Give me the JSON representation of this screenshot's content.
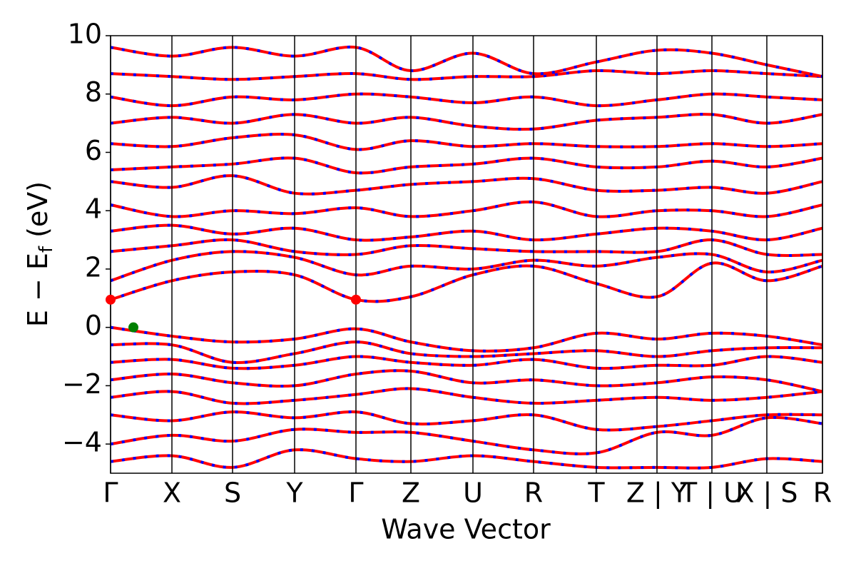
{
  "chart_data": {
    "type": "line",
    "xlabel": "Wave Vector",
    "ylabel": {
      "main": "E − E",
      "sub": "f",
      "unit": "(eV)"
    },
    "x": [
      0,
      0.86,
      1.71,
      2.58,
      3.44,
      4.21,
      5.08,
      5.93,
      6.81,
      7.66,
      8.43,
      9.2,
      9.98
    ],
    "xlim": [
      0,
      9.98
    ],
    "xticks": [
      {
        "value": 0,
        "label": "Γ"
      },
      {
        "value": 0.86,
        "label": "X"
      },
      {
        "value": 1.71,
        "label": "S"
      },
      {
        "value": 2.58,
        "label": "Y"
      },
      {
        "value": 3.44,
        "label": "Γ"
      },
      {
        "value": 4.21,
        "label": "Z"
      },
      {
        "value": 5.08,
        "label": "U"
      },
      {
        "value": 5.93,
        "label": "R"
      },
      {
        "value": 6.81,
        "label": "T"
      },
      {
        "value": 7.66,
        "label": "Z | Y"
      },
      {
        "value": 8.43,
        "label": "T | U"
      },
      {
        "value": 9.2,
        "label": "X | S"
      },
      {
        "value": 9.98,
        "label": "R"
      }
    ],
    "ylim": [
      -5,
      10
    ],
    "yticks": [
      {
        "value": -4,
        "label": "−4"
      },
      {
        "value": -2,
        "label": "−2"
      },
      0,
      2,
      4,
      6,
      8,
      10
    ],
    "line_color": "#ff0000",
    "dash_color": "#0000ff",
    "series": [
      {
        "values": [
          0,
          -0.3,
          -0.5,
          -0.4,
          -0.05,
          -0.5,
          -0.8,
          -0.7,
          -0.2,
          -0.4,
          -0.2,
          -0.3,
          -0.6
        ]
      },
      {
        "values": [
          -0.6,
          -0.6,
          -1.2,
          -0.9,
          -0.5,
          -0.9,
          -1.0,
          -0.9,
          -0.8,
          -1.0,
          -0.8,
          -0.7,
          -0.7
        ]
      },
      {
        "values": [
          -1.2,
          -1.1,
          -1.4,
          -1.3,
          -1.0,
          -1.2,
          -1.3,
          -1.1,
          -1.4,
          -1.3,
          -1.3,
          -1.0,
          -1.2
        ]
      },
      {
        "values": [
          -1.8,
          -1.6,
          -1.9,
          -2.0,
          -1.6,
          -1.5,
          -1.9,
          -1.8,
          -2.0,
          -1.9,
          -1.7,
          -1.8,
          -2.2
        ]
      },
      {
        "values": [
          -2.4,
          -2.2,
          -2.6,
          -2.5,
          -2.3,
          -2.1,
          -2.4,
          -2.6,
          -2.5,
          -2.4,
          -2.5,
          -2.4,
          -2.2
        ]
      },
      {
        "values": [
          -3.0,
          -3.2,
          -2.9,
          -3.1,
          -2.9,
          -3.3,
          -3.2,
          -3.0,
          -3.5,
          -3.4,
          -3.2,
          -3.0,
          -3.0
        ]
      },
      {
        "values": [
          -4.0,
          -3.7,
          -3.9,
          -3.5,
          -3.6,
          -3.6,
          -3.9,
          -4.2,
          -4.3,
          -3.6,
          -3.7,
          -3.1,
          -3.3
        ]
      },
      {
        "values": [
          -4.6,
          -4.4,
          -4.8,
          -4.2,
          -4.5,
          -4.6,
          -4.4,
          -4.6,
          -4.8,
          -4.8,
          -4.8,
          -4.5,
          -4.6
        ]
      },
      {
        "values": [
          0.95,
          1.6,
          1.9,
          1.8,
          0.95,
          1.05,
          1.8,
          2.1,
          1.5,
          1.05,
          2.2,
          1.6,
          2.1
        ]
      },
      {
        "values": [
          1.6,
          2.3,
          2.6,
          2.4,
          1.8,
          2.1,
          2.0,
          2.3,
          2.1,
          2.4,
          2.5,
          1.9,
          2.3
        ]
      },
      {
        "values": [
          2.6,
          2.8,
          3.0,
          2.6,
          2.5,
          2.8,
          2.7,
          2.6,
          2.6,
          2.6,
          3.0,
          2.5,
          2.5
        ]
      },
      {
        "values": [
          3.3,
          3.5,
          3.2,
          3.4,
          3.0,
          3.1,
          3.3,
          3.0,
          3.2,
          3.4,
          3.3,
          3.0,
          3.4
        ]
      },
      {
        "values": [
          4.2,
          3.8,
          4.0,
          3.9,
          4.1,
          3.8,
          4.0,
          4.3,
          3.8,
          4.0,
          4.0,
          3.8,
          4.2
        ]
      },
      {
        "values": [
          5.0,
          4.8,
          5.2,
          4.6,
          4.7,
          4.9,
          5.0,
          5.1,
          4.7,
          4.7,
          4.8,
          4.6,
          5.0
        ]
      },
      {
        "values": [
          5.4,
          5.5,
          5.6,
          5.8,
          5.3,
          5.5,
          5.6,
          5.8,
          5.5,
          5.5,
          5.7,
          5.5,
          5.8
        ]
      },
      {
        "values": [
          6.3,
          6.2,
          6.5,
          6.6,
          6.1,
          6.4,
          6.2,
          6.3,
          6.2,
          6.2,
          6.3,
          6.2,
          6.3
        ]
      },
      {
        "values": [
          7.0,
          7.2,
          7.0,
          7.3,
          7.0,
          7.2,
          6.9,
          6.8,
          7.1,
          7.2,
          7.3,
          7.0,
          7.3
        ]
      },
      {
        "values": [
          7.9,
          7.6,
          7.9,
          7.8,
          8.0,
          7.9,
          7.7,
          7.9,
          7.6,
          7.8,
          8.0,
          7.9,
          7.8
        ]
      },
      {
        "values": [
          8.7,
          8.6,
          8.5,
          8.6,
          8.7,
          8.5,
          8.6,
          8.6,
          8.8,
          8.7,
          8.8,
          8.7,
          8.6
        ]
      },
      {
        "values": [
          9.6,
          9.3,
          9.6,
          9.3,
          9.6,
          8.8,
          9.4,
          8.7,
          9.1,
          9.5,
          9.4,
          9.0,
          8.6
        ]
      }
    ],
    "markers": [
      {
        "x": 0,
        "y": 0.95,
        "color": "#ff0000"
      },
      {
        "x": 3.44,
        "y": 0.95,
        "color": "#ff0000"
      },
      {
        "x": 0.32,
        "y": 0,
        "color": "#008000"
      }
    ]
  }
}
